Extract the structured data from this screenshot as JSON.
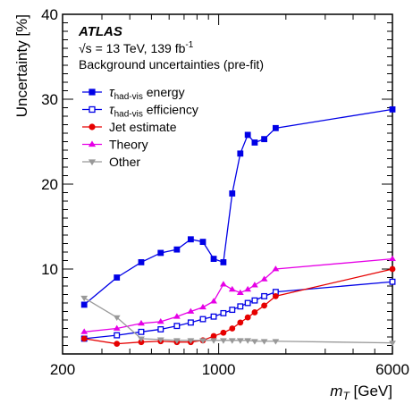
{
  "chart_data": {
    "type": "line",
    "x_scale": "log",
    "xlim": [
      200,
      6000
    ],
    "ylim": [
      0,
      40
    ],
    "xlabel": "m_T [GeV]",
    "xlabel_main": "m",
    "xlabel_sub": "T",
    "xlabel_unit": " [GeV]",
    "ylabel": "Uncertainty [%]",
    "x_tick_labels": [
      "200",
      "1000",
      "6000"
    ],
    "x_ticks": [
      200,
      1000,
      6000
    ],
    "y_tick_labels": [
      "10",
      "20",
      "30",
      "40"
    ],
    "y_ticks": [
      10,
      20,
      30,
      40
    ],
    "annotations": {
      "experiment": "ATLAS",
      "energy": "√s = 13 TeV, 139 fb",
      "energy_exp": "-1",
      "subtitle": "Background uncertainties (pre-fit)"
    },
    "legend_position": "top-left",
    "series": [
      {
        "name": "τ had-vis energy",
        "legend_main": "τ",
        "legend_sub": "had-vis",
        "legend_rest": " energy",
        "color": "#0000e6",
        "marker": "square-filled",
        "x": [
          250,
          350,
          450,
          550,
          650,
          750,
          850,
          950,
          1050,
          1150,
          1250,
          1350,
          1450,
          1600,
          1800,
          6000
        ],
        "y": [
          5.8,
          9.0,
          10.8,
          11.9,
          12.3,
          13.5,
          13.2,
          11.2,
          10.8,
          18.9,
          23.6,
          25.8,
          24.9,
          25.3,
          26.6,
          28.8
        ]
      },
      {
        "name": "τ had-vis efficiency",
        "legend_main": "τ",
        "legend_sub": "had-vis",
        "legend_rest": " efficiency",
        "color": "#0000e6",
        "marker": "square-open",
        "x": [
          250,
          350,
          450,
          550,
          650,
          750,
          850,
          950,
          1050,
          1150,
          1250,
          1350,
          1450,
          1600,
          1800,
          6000
        ],
        "y": [
          1.8,
          2.2,
          2.6,
          2.9,
          3.3,
          3.7,
          4.1,
          4.4,
          4.8,
          5.2,
          5.6,
          6.0,
          6.3,
          6.8,
          7.3,
          8.5
        ]
      },
      {
        "name": "Jet estimate",
        "color": "#e60000",
        "marker": "circle-filled",
        "x": [
          250,
          350,
          450,
          550,
          650,
          750,
          850,
          950,
          1050,
          1150,
          1250,
          1350,
          1450,
          1600,
          1800,
          6000
        ],
        "y": [
          1.8,
          1.2,
          1.4,
          1.5,
          1.4,
          1.4,
          1.6,
          2.1,
          2.5,
          3.0,
          3.7,
          4.3,
          4.9,
          5.7,
          6.8,
          10.0
        ]
      },
      {
        "name": "Theory",
        "color": "#e600e6",
        "marker": "triangle-up",
        "x": [
          250,
          350,
          450,
          550,
          650,
          750,
          850,
          950,
          1050,
          1150,
          1250,
          1350,
          1450,
          1600,
          1800,
          6000
        ],
        "y": [
          2.6,
          3.0,
          3.6,
          3.8,
          4.4,
          5.0,
          5.5,
          6.2,
          8.2,
          7.6,
          7.2,
          7.6,
          8.1,
          8.8,
          10.0,
          11.2
        ]
      },
      {
        "name": "Other",
        "color": "#999999",
        "marker": "triangle-down",
        "x": [
          250,
          350,
          450,
          550,
          650,
          750,
          850,
          950,
          1050,
          1150,
          1250,
          1350,
          1450,
          1600,
          1800,
          6000
        ],
        "y": [
          6.6,
          4.3,
          1.8,
          1.7,
          1.6,
          1.6,
          1.6,
          1.6,
          1.6,
          1.6,
          1.6,
          1.6,
          1.5,
          1.5,
          1.5,
          1.3
        ]
      }
    ]
  }
}
